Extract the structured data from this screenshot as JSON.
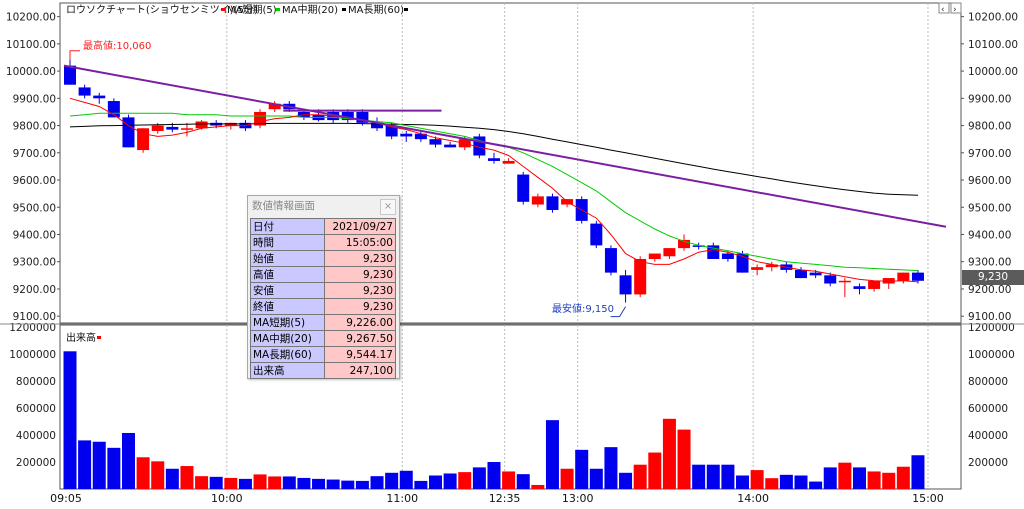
{
  "chart_data": [
    {
      "type": "candlestick",
      "title": "ロウソクチャート(ショウセンミツイ)(5分)",
      "legend": [
        {
          "name": "MA短期(5)",
          "color": "#ff0000"
        },
        {
          "name": "MA中期(20)",
          "color": "#00cc00"
        },
        {
          "name": "MA長期(60)",
          "color": "#000000"
        }
      ],
      "legend_placement": "top-left",
      "ylim": [
        9075,
        10250
      ],
      "y_ticks": [
        "10200.00",
        "10100.00",
        "10000.00",
        "9900.00",
        "9800.00",
        "9700.00",
        "9600.00",
        "9500.00",
        "9400.00",
        "9300.00",
        "9200.00",
        "9100.00"
      ],
      "x_labels": [
        "09:05",
        "10:00",
        "11:00",
        "12:35",
        "13:00",
        "14:00",
        "15:00"
      ],
      "up_color": "#ff0000",
      "down_color": "#0000ee",
      "candles": [
        {
          "o": 10020,
          "h": 10060,
          "l": 9950,
          "c": 9950
        },
        {
          "o": 9940,
          "h": 9950,
          "l": 9900,
          "c": 9910
        },
        {
          "o": 9910,
          "h": 9920,
          "l": 9880,
          "c": 9900
        },
        {
          "o": 9890,
          "h": 9900,
          "l": 9830,
          "c": 9830
        },
        {
          "o": 9830,
          "h": 9840,
          "l": 9720,
          "c": 9720
        },
        {
          "o": 9710,
          "h": 9790,
          "l": 9700,
          "c": 9790
        },
        {
          "o": 9780,
          "h": 9810,
          "l": 9770,
          "c": 9800
        },
        {
          "o": 9795,
          "h": 9810,
          "l": 9775,
          "c": 9785
        },
        {
          "o": 9790,
          "h": 9810,
          "l": 9760,
          "c": 9790
        },
        {
          "o": 9790,
          "h": 9820,
          "l": 9785,
          "c": 9815
        },
        {
          "o": 9810,
          "h": 9820,
          "l": 9790,
          "c": 9800
        },
        {
          "o": 9800,
          "h": 9810,
          "l": 9785,
          "c": 9810
        },
        {
          "o": 9810,
          "h": 9820,
          "l": 9780,
          "c": 9790
        },
        {
          "o": 9800,
          "h": 9860,
          "l": 9790,
          "c": 9850
        },
        {
          "o": 9860,
          "h": 9890,
          "l": 9850,
          "c": 9880
        },
        {
          "o": 9880,
          "h": 9890,
          "l": 9850,
          "c": 9860
        },
        {
          "o": 9850,
          "h": 9860,
          "l": 9820,
          "c": 9830
        },
        {
          "o": 9840,
          "h": 9860,
          "l": 9815,
          "c": 9820
        },
        {
          "o": 9850,
          "h": 9860,
          "l": 9810,
          "c": 9820
        },
        {
          "o": 9850,
          "h": 9860,
          "l": 9810,
          "c": 9820
        },
        {
          "o": 9850,
          "h": 9860,
          "l": 9800,
          "c": 9810
        },
        {
          "o": 9810,
          "h": 9830,
          "l": 9780,
          "c": 9790
        },
        {
          "o": 9800,
          "h": 9810,
          "l": 9750,
          "c": 9760
        },
        {
          "o": 9770,
          "h": 9780,
          "l": 9740,
          "c": 9760
        },
        {
          "o": 9770,
          "h": 9780,
          "l": 9740,
          "c": 9750
        },
        {
          "o": 9750,
          "h": 9760,
          "l": 9720,
          "c": 9730
        },
        {
          "o": 9730,
          "h": 9740,
          "l": 9720,
          "c": 9720
        },
        {
          "o": 9720,
          "h": 9760,
          "l": 9710,
          "c": 9750
        },
        {
          "o": 9760,
          "h": 9770,
          "l": 9680,
          "c": 9690
        },
        {
          "o": 9680,
          "h": 9700,
          "l": 9660,
          "c": 9670
        },
        {
          "o": 9660,
          "h": 9680,
          "l": 9660,
          "c": 9670
        },
        {
          "o": 9620,
          "h": 9630,
          "l": 9510,
          "c": 9520
        },
        {
          "o": 9510,
          "h": 9550,
          "l": 9500,
          "c": 9540
        },
        {
          "o": 9540,
          "h": 9550,
          "l": 9480,
          "c": 9490
        },
        {
          "o": 9510,
          "h": 9530,
          "l": 9500,
          "c": 9530
        },
        {
          "o": 9530,
          "h": 9540,
          "l": 9440,
          "c": 9450
        },
        {
          "o": 9440,
          "h": 9450,
          "l": 9350,
          "c": 9360
        },
        {
          "o": 9350,
          "h": 9360,
          "l": 9250,
          "c": 9260
        },
        {
          "o": 9250,
          "h": 9270,
          "l": 9150,
          "c": 9180
        },
        {
          "o": 9180,
          "h": 9320,
          "l": 9170,
          "c": 9310
        },
        {
          "o": 9310,
          "h": 9330,
          "l": 9300,
          "c": 9330
        },
        {
          "o": 9320,
          "h": 9350,
          "l": 9310,
          "c": 9350
        },
        {
          "o": 9350,
          "h": 9400,
          "l": 9340,
          "c": 9380
        },
        {
          "o": 9360,
          "h": 9370,
          "l": 9345,
          "c": 9355
        },
        {
          "o": 9360,
          "h": 9370,
          "l": 9310,
          "c": 9310
        },
        {
          "o": 9330,
          "h": 9340,
          "l": 9300,
          "c": 9310
        },
        {
          "o": 9330,
          "h": 9340,
          "l": 9260,
          "c": 9260
        },
        {
          "o": 9270,
          "h": 9290,
          "l": 9250,
          "c": 9280
        },
        {
          "o": 9280,
          "h": 9300,
          "l": 9265,
          "c": 9290
        },
        {
          "o": 9290,
          "h": 9300,
          "l": 9260,
          "c": 9270
        },
        {
          "o": 9270,
          "h": 9280,
          "l": 9240,
          "c": 9240
        },
        {
          "o": 9260,
          "h": 9270,
          "l": 9240,
          "c": 9250
        },
        {
          "o": 9250,
          "h": 9260,
          "l": 9210,
          "c": 9220
        },
        {
          "o": 9230,
          "h": 9240,
          "l": 9170,
          "c": 9230
        },
        {
          "o": 9210,
          "h": 9220,
          "l": 9180,
          "c": 9200
        },
        {
          "o": 9200,
          "h": 9230,
          "l": 9190,
          "c": 9230
        },
        {
          "o": 9220,
          "h": 9240,
          "l": 9200,
          "c": 9240
        },
        {
          "o": 9230,
          "h": 9260,
          "l": 9220,
          "c": 9260
        },
        {
          "o": 9260,
          "h": 9270,
          "l": 9220,
          "c": 9230
        }
      ],
      "ma5": [
        9900,
        9885,
        9870,
        9840,
        9800,
        9770,
        9760,
        9765,
        9775,
        9790,
        9795,
        9800,
        9800,
        9815,
        9825,
        9830,
        9840,
        9840,
        9835,
        9830,
        9820,
        9810,
        9795,
        9785,
        9770,
        9755,
        9745,
        9735,
        9720,
        9710,
        9690,
        9650,
        9610,
        9570,
        9520,
        9490,
        9460,
        9400,
        9330,
        9300,
        9290,
        9290,
        9310,
        9335,
        9345,
        9335,
        9320,
        9300,
        9290,
        9280,
        9270,
        9265,
        9255,
        9245,
        9235,
        9230,
        9228,
        9230,
        9226
      ],
      "ma20": [
        9835,
        9840,
        9845,
        9845,
        9845,
        9845,
        9845,
        9845,
        9840,
        9840,
        9840,
        9835,
        9835,
        9835,
        9835,
        9835,
        9830,
        9830,
        9830,
        9825,
        9820,
        9815,
        9810,
        9800,
        9790,
        9780,
        9770,
        9760,
        9745,
        9730,
        9720,
        9700,
        9675,
        9650,
        9620,
        9590,
        9560,
        9520,
        9480,
        9450,
        9420,
        9395,
        9375,
        9360,
        9350,
        9340,
        9330,
        9320,
        9310,
        9300,
        9295,
        9290,
        9285,
        9280,
        9278,
        9275,
        9272,
        9270,
        9267.5
      ],
      "ma60": [
        9795,
        9797,
        9799,
        9800,
        9801,
        9802,
        9803,
        9804,
        9805,
        9806,
        9806,
        9806,
        9806,
        9807,
        9808,
        9808,
        9808,
        9808,
        9808,
        9808,
        9807,
        9806,
        9805,
        9804,
        9803,
        9801,
        9798,
        9794,
        9790,
        9785,
        9778,
        9770,
        9760,
        9750,
        9740,
        9730,
        9720,
        9710,
        9700,
        9690,
        9680,
        9670,
        9660,
        9650,
        9640,
        9631,
        9622,
        9613,
        9604,
        9595,
        9587,
        9579,
        9571,
        9564,
        9558,
        9552,
        9548,
        9546,
        9544.17
      ],
      "trendline": [
        [
          0,
          10020
        ],
        [
          58,
          9410
        ]
      ],
      "resistance": {
        "value": 9855,
        "from": 15,
        "to": 25
      },
      "annotations": {
        "high_label": "最高値:10,060",
        "high_value": 10060,
        "high_index": 0,
        "low_label": "最安値:9,150",
        "low_value": 9150,
        "low_index": 38
      },
      "last_price_label": "9,230"
    },
    {
      "type": "bar",
      "title": "出来高",
      "ylim": [
        0,
        1200000
      ],
      "y_ticks": [
        "1200000",
        "1000000",
        "800000",
        "600000",
        "400000",
        "200000"
      ],
      "volumes": [
        1020000,
        360000,
        350000,
        305000,
        415000,
        235000,
        205000,
        150000,
        170000,
        95000,
        90000,
        82000,
        75000,
        108000,
        93000,
        93000,
        82000,
        75000,
        70000,
        62000,
        60000,
        95000,
        120000,
        135000,
        60000,
        100000,
        115000,
        125000,
        160000,
        200000,
        130000,
        110000,
        30000,
        510000,
        150000,
        290000,
        150000,
        310000,
        120000,
        180000,
        270000,
        520000,
        440000,
        180000,
        180000,
        180000,
        100000,
        140000,
        80000,
        105000,
        100000,
        55000,
        160000,
        195000,
        160000,
        130000,
        120000,
        165000,
        250000
      ]
    }
  ],
  "info_panel": {
    "title": "数値情報画面",
    "close": "×",
    "rows": [
      {
        "k": "日付",
        "v": "2021/09/27"
      },
      {
        "k": "時間",
        "v": "15:05:00"
      },
      {
        "k": "始値",
        "v": "9,230"
      },
      {
        "k": "高値",
        "v": "9,230"
      },
      {
        "k": "安値",
        "v": "9,230"
      },
      {
        "k": "終値",
        "v": "9,230"
      },
      {
        "k": "MA短期(5)",
        "v": "9,226.00"
      },
      {
        "k": "MA中期(20)",
        "v": "9,267.50"
      },
      {
        "k": "MA長期(60)",
        "v": "9,544.17"
      },
      {
        "k": "出来高",
        "v": "247,100"
      }
    ]
  }
}
